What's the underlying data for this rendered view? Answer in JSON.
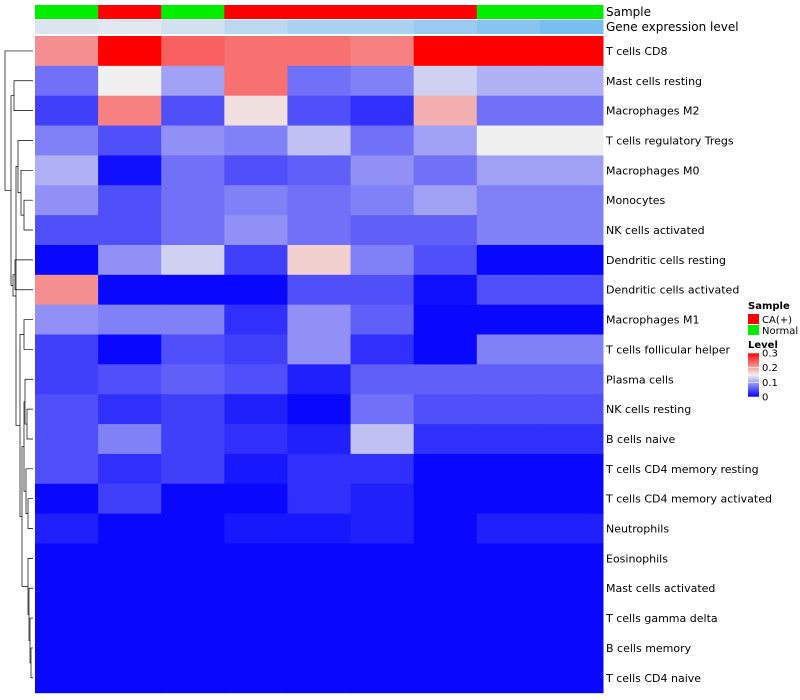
{
  "chart_data": {
    "type": "heatmap",
    "title": "",
    "annotations": {
      "sample": {
        "label": "Sample",
        "values": [
          "Normal",
          "CA(+)",
          "Normal",
          "CA(+)",
          "CA(+)",
          "CA(+)",
          "CA(+)",
          "Normal",
          "Normal"
        ],
        "colors": {
          "CA(+)": "#ff0000",
          "Normal": "#00ee00"
        }
      },
      "gene_expression": {
        "label": "Gene expression level",
        "values": [
          0.02,
          0.01,
          0.03,
          0.06,
          0.08,
          0.08,
          0.1,
          0.12,
          0.14
        ]
      }
    },
    "rows": [
      "T cells CD8",
      "Mast cells resting",
      "Macrophages M2",
      "T cells regulatory  Tregs",
      "Macrophages M0",
      "Monocytes",
      "NK cells activated",
      "Dendritic cells resting",
      "Dendritic cells activated",
      "Macrophages M1",
      "T cells follicular helper",
      "Plasma cells",
      "NK cells resting",
      "B cells naive",
      "T cells CD4 memory resting",
      "T cells CD4 memory activated",
      "Neutrophils",
      "Eosinophils",
      "Mast cells activated",
      "T cells gamma delta",
      "B cells memory",
      "T cells CD4 naive"
    ],
    "columns": 9,
    "values": [
      [
        0.21,
        0.3,
        0.24,
        0.23,
        0.23,
        0.22,
        0.3,
        0.3,
        0.3
      ],
      [
        0.07,
        0.15,
        0.1,
        0.23,
        0.07,
        0.08,
        0.13,
        0.11,
        0.11
      ],
      [
        0.04,
        0.22,
        0.05,
        0.16,
        0.05,
        0.03,
        0.19,
        0.07,
        0.07
      ],
      [
        0.08,
        0.05,
        0.09,
        0.08,
        0.12,
        0.07,
        0.1,
        0.15,
        0.15
      ],
      [
        0.11,
        0.01,
        0.07,
        0.05,
        0.06,
        0.09,
        0.07,
        0.1,
        0.1
      ],
      [
        0.09,
        0.05,
        0.07,
        0.08,
        0.07,
        0.08,
        0.1,
        0.08,
        0.08
      ],
      [
        0.05,
        0.05,
        0.07,
        0.09,
        0.07,
        0.06,
        0.06,
        0.08,
        0.08
      ],
      [
        0.005,
        0.09,
        0.13,
        0.04,
        0.17,
        0.08,
        0.05,
        0.005,
        0.005
      ],
      [
        0.21,
        0.005,
        0.005,
        0.005,
        0.05,
        0.05,
        0.01,
        0.05,
        0.05
      ],
      [
        0.09,
        0.08,
        0.08,
        0.03,
        0.09,
        0.06,
        0.005,
        0.005,
        0.005
      ],
      [
        0.04,
        0.005,
        0.05,
        0.04,
        0.09,
        0.03,
        0.005,
        0.08,
        0.08
      ],
      [
        0.04,
        0.05,
        0.06,
        0.05,
        0.02,
        0.06,
        0.06,
        0.06,
        0.06
      ],
      [
        0.05,
        0.03,
        0.04,
        0.02,
        0.005,
        0.07,
        0.05,
        0.05,
        0.05
      ],
      [
        0.05,
        0.08,
        0.04,
        0.03,
        0.02,
        0.12,
        0.03,
        0.03,
        0.03
      ],
      [
        0.05,
        0.03,
        0.04,
        0.015,
        0.03,
        0.03,
        0.005,
        0.005,
        0.005
      ],
      [
        0.005,
        0.04,
        0.005,
        0.005,
        0.03,
        0.02,
        0.005,
        0.005,
        0.005
      ],
      [
        0.02,
        0.005,
        0.005,
        0.015,
        0.015,
        0.02,
        0.005,
        0.02,
        0.02
      ],
      [
        0.005,
        0.005,
        0.005,
        0.005,
        0.005,
        0.005,
        0.005,
        0.005,
        0.005
      ],
      [
        0.005,
        0.005,
        0.005,
        0.005,
        0.005,
        0.005,
        0.005,
        0.005,
        0.005
      ],
      [
        0.005,
        0.005,
        0.005,
        0.005,
        0.005,
        0.005,
        0.005,
        0.005,
        0.005
      ],
      [
        0.005,
        0.005,
        0.005,
        0.005,
        0.005,
        0.005,
        0.005,
        0.005,
        0.005
      ],
      [
        0.005,
        0.005,
        0.005,
        0.005,
        0.005,
        0.005,
        0.005,
        0.005,
        0.005
      ]
    ],
    "color_scale": {
      "min": 0,
      "max": 0.3,
      "stops": [
        {
          "value": 0,
          "color": "#0000ff"
        },
        {
          "value": 0.15,
          "color": "#f0f0f0"
        },
        {
          "value": 0.3,
          "color": "#ff0000"
        }
      ]
    },
    "dendrogram": "rows",
    "legend": {
      "sample_title": "Sample",
      "sample_entries": [
        {
          "label": "CA(+)",
          "color": "#ff0000"
        },
        {
          "label": "Normal",
          "color": "#00ee00"
        }
      ],
      "level_title": "Level",
      "level_ticks": [
        "0.3",
        "0.2",
        "0.1",
        "0"
      ],
      "placement": "right"
    }
  }
}
